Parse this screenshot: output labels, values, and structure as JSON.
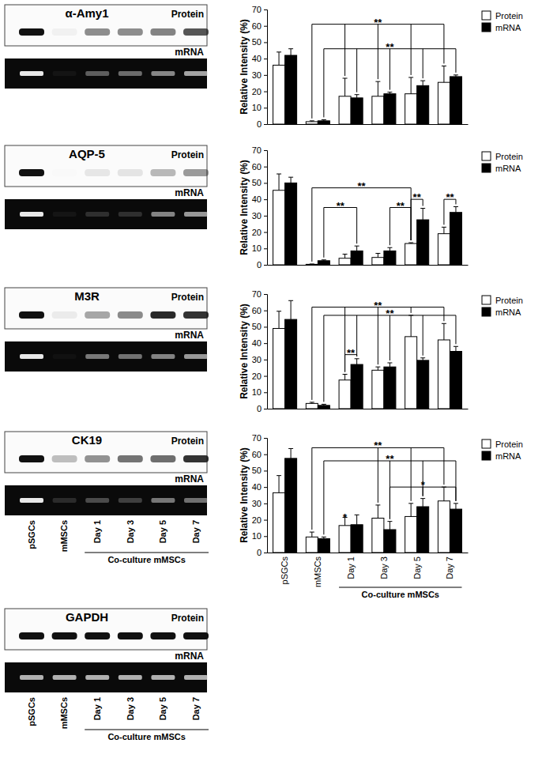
{
  "chart_data": [
    {
      "type": "bar",
      "categories": [
        null,
        null,
        null,
        null,
        null,
        null
      ],
      "tick_labels": "y",
      "y_label": "Relative Intensity (%)",
      "ylim": [
        0,
        70
      ],
      "yticks": [
        0,
        10,
        20,
        30,
        40,
        50,
        60,
        70
      ],
      "legend": "top-right",
      "series": [
        {
          "name": "Protein",
          "color": "#ffffff",
          "values": [
            36,
            1.5,
            17,
            17,
            18.5,
            25.5
          ],
          "errors": [
            8,
            0.5,
            11,
            9,
            10,
            10
          ]
        },
        {
          "name": "mRNA",
          "color": "#000000",
          "values": [
            42,
            2,
            16,
            18.5,
            23.5,
            29
          ],
          "errors": [
            4,
            0.7,
            2,
            1,
            3,
            1
          ]
        }
      ],
      "annotations": [
        {
          "label": "**",
          "y": 61,
          "from": [
            1,
            0
          ],
          "to": [
            [
              2,
              0
            ],
            [
              3,
              0
            ],
            [
              4,
              0
            ],
            [
              5,
              0
            ]
          ]
        },
        {
          "label": "**",
          "y": 46,
          "from": [
            1,
            1
          ],
          "to": [
            [
              2,
              1
            ],
            [
              3,
              1
            ],
            [
              4,
              1
            ],
            [
              5,
              1
            ]
          ]
        }
      ]
    },
    {
      "type": "bar",
      "categories": [
        null,
        null,
        null,
        null,
        null,
        null
      ],
      "tick_labels": "y",
      "y_label": "Relative Intensity (%)",
      "ylim": [
        0,
        70
      ],
      "yticks": [
        0,
        10,
        20,
        30,
        40,
        50,
        60,
        70
      ],
      "legend": "top-right",
      "series": [
        {
          "name": "Protein",
          "color": "#ffffff",
          "values": [
            45.5,
            0.3,
            4,
            4.5,
            13,
            19
          ],
          "errors": [
            10,
            0.2,
            2.5,
            2.5,
            0.5,
            4
          ]
        },
        {
          "name": "mRNA",
          "color": "#000000",
          "values": [
            50,
            2.5,
            8.5,
            8.5,
            27.5,
            32
          ],
          "errors": [
            3.5,
            0.5,
            3,
            2,
            7,
            3.5
          ]
        }
      ],
      "annotations": [
        {
          "label": "**",
          "y": 47,
          "from": [
            1,
            0
          ],
          "to": [
            [
              4,
              0
            ]
          ]
        },
        {
          "label": "**",
          "y": 35,
          "from": [
            1,
            1
          ],
          "to": [
            [
              2,
              1
            ]
          ]
        },
        {
          "label": "**",
          "y": 35,
          "from": [
            3,
            1
          ],
          "to": [
            [
              4,
              0
            ]
          ]
        },
        {
          "label": "**",
          "y": 40,
          "from": [
            4,
            0
          ],
          "to": [
            [
              4,
              1
            ]
          ]
        },
        {
          "label": "**",
          "y": 40,
          "from": [
            5,
            0
          ],
          "to": [
            [
              5,
              1
            ]
          ]
        }
      ]
    },
    {
      "type": "bar",
      "categories": [
        null,
        null,
        null,
        null,
        null,
        null
      ],
      "tick_labels": "y",
      "y_label": "Relative Intensity (%)",
      "ylim": [
        0,
        70
      ],
      "yticks": [
        0,
        10,
        20,
        30,
        40,
        50,
        60,
        70
      ],
      "legend": "top-right",
      "series": [
        {
          "name": "Protein",
          "color": "#ffffff",
          "values": [
            49,
            3.2,
            17.5,
            23.5,
            44,
            42
          ],
          "errors": [
            10.5,
            0.7,
            3.5,
            2,
            13,
            10
          ]
        },
        {
          "name": "mRNA",
          "color": "#000000",
          "values": [
            54.5,
            2,
            27,
            25.5,
            29.5,
            35
          ],
          "errors": [
            11.5,
            0.7,
            3.5,
            2.5,
            1.5,
            3
          ]
        }
      ],
      "annotations": [
        {
          "label": "**",
          "y": 62,
          "from": [
            1,
            0
          ],
          "to": [
            [
              2,
              0
            ],
            [
              3,
              0
            ],
            [
              4,
              0
            ],
            [
              5,
              0
            ]
          ]
        },
        {
          "label": "**",
          "y": 57,
          "from": [
            1,
            1
          ],
          "to": [
            [
              2,
              1
            ],
            [
              3,
              1
            ],
            [
              4,
              1
            ],
            [
              5,
              1
            ]
          ]
        },
        {
          "label": "**",
          "y": 33,
          "from": [
            2,
            0
          ],
          "to": [
            [
              2,
              1
            ]
          ]
        }
      ]
    },
    {
      "type": "bar",
      "categories": [
        "pSGCs",
        "mMSCs",
        "Day 1",
        "Day 3",
        "Day 5",
        "Day 7"
      ],
      "x_group": {
        "label": "Co-culture mMSCs",
        "from": 2,
        "to": 5
      },
      "y_label": "Relative Intensity (%)",
      "ylim": [
        0,
        70
      ],
      "yticks": [
        0,
        10,
        20,
        30,
        40,
        50,
        60,
        70
      ],
      "legend": "top-right",
      "series": [
        {
          "name": "Protein",
          "color": "#ffffff",
          "values": [
            36.5,
            9.5,
            16.5,
            21,
            22,
            31.5
          ],
          "errors": [
            10.5,
            3,
            5,
            8,
            8,
            8.5
          ]
        },
        {
          "name": "mRNA",
          "color": "#000000",
          "values": [
            57.5,
            8.5,
            17,
            14,
            28,
            26.5
          ],
          "errors": [
            6,
            1,
            6,
            5,
            5,
            3.5
          ]
        }
      ],
      "annotations": [
        {
          "label": "*",
          "y": 23,
          "from": [
            2,
            0
          ],
          "to": []
        },
        {
          "label": "**",
          "y": 64,
          "from": [
            1,
            0
          ],
          "to": [
            [
              3,
              0
            ],
            [
              4,
              0
            ],
            [
              5,
              0
            ]
          ]
        },
        {
          "label": "**",
          "y": 56,
          "from": [
            1,
            1
          ],
          "to": [
            [
              3,
              1
            ],
            [
              4,
              1
            ],
            [
              5,
              1
            ]
          ]
        },
        {
          "label": "*",
          "y": 40,
          "from": [
            3,
            1
          ],
          "to": [
            [
              4,
              1
            ],
            [
              5,
              1
            ]
          ]
        }
      ]
    }
  ],
  "gels": [
    {
      "title": "α-Amy1",
      "protein_label": "Protein",
      "mrna_label": "mRNA"
    },
    {
      "title": "AQP-5",
      "protein_label": "Protein",
      "mrna_label": "mRNA"
    },
    {
      "title": "M3R",
      "protein_label": "Protein",
      "mrna_label": "mRNA"
    },
    {
      "title": "CK19",
      "protein_label": "Protein",
      "mrna_label": "mRNA",
      "lanes": [
        "pSGCs",
        "mMSCs",
        "Day 1",
        "Day 3",
        "Day 5",
        "Day 7"
      ],
      "lane_group": "Co-culture mMSCs"
    },
    {
      "title": "GAPDH",
      "protein_label": "Protein",
      "mrna_label": "mRNA",
      "lanes": [
        "pSGCs",
        "mMSCs",
        "Day 1",
        "Day 3",
        "Day 5",
        "Day 7"
      ],
      "lane_group": "Co-culture mMSCs"
    }
  ]
}
